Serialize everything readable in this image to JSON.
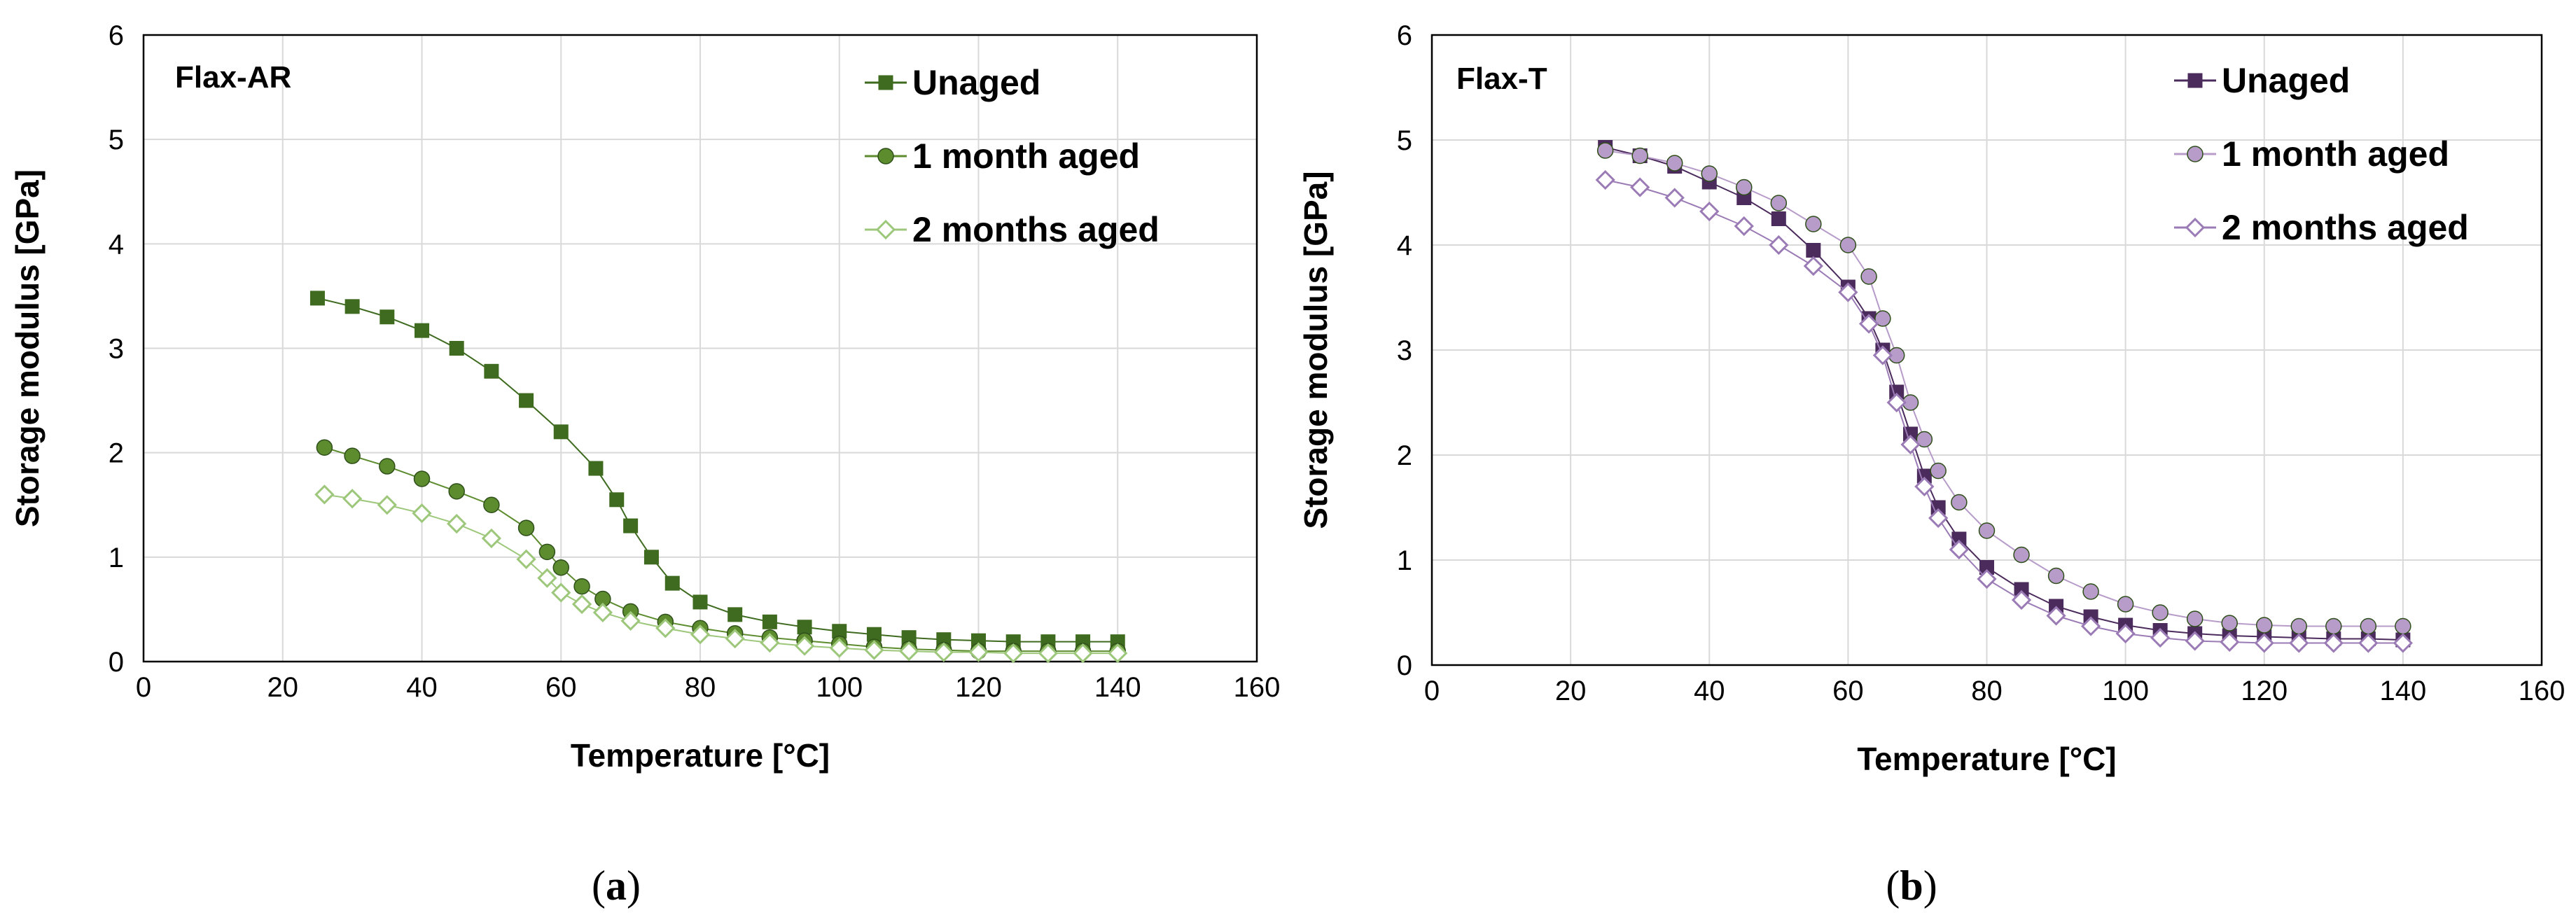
{
  "chart_data": [
    {
      "type": "scatter",
      "panel_label": "Flax-AR",
      "caption": "a",
      "xlabel": "Temperature [°C]",
      "ylabel": "Storage modulus [GPa]",
      "xlim": [
        0,
        160
      ],
      "ylim": [
        0,
        6
      ],
      "xticks": [
        0,
        20,
        40,
        60,
        80,
        100,
        120,
        140,
        160
      ],
      "yticks": [
        0,
        1,
        2,
        3,
        4,
        5,
        6
      ],
      "grid": true,
      "legend_position": "top-right",
      "series": [
        {
          "name": "Unaged",
          "marker": "square",
          "color": "#3e6b1f",
          "points": [
            [
              25,
              3.48
            ],
            [
              30,
              3.4
            ],
            [
              35,
              3.3
            ],
            [
              40,
              3.17
            ],
            [
              45,
              3.0
            ],
            [
              50,
              2.78
            ],
            [
              55,
              2.5
            ],
            [
              60,
              2.2
            ],
            [
              65,
              1.85
            ],
            [
              68,
              1.55
            ],
            [
              70,
              1.3
            ],
            [
              73,
              1.0
            ],
            [
              76,
              0.75
            ],
            [
              80,
              0.57
            ],
            [
              85,
              0.45
            ],
            [
              90,
              0.38
            ],
            [
              95,
              0.33
            ],
            [
              100,
              0.29
            ],
            [
              105,
              0.26
            ],
            [
              110,
              0.23
            ],
            [
              115,
              0.21
            ],
            [
              120,
              0.2
            ],
            [
              125,
              0.19
            ],
            [
              130,
              0.19
            ],
            [
              135,
              0.19
            ],
            [
              140,
              0.19
            ]
          ]
        },
        {
          "name": "1 month aged",
          "marker": "circle",
          "color": "#5c8c2e",
          "points": [
            [
              26,
              2.05
            ],
            [
              30,
              1.97
            ],
            [
              35,
              1.87
            ],
            [
              40,
              1.75
            ],
            [
              45,
              1.63
            ],
            [
              50,
              1.5
            ],
            [
              55,
              1.28
            ],
            [
              58,
              1.05
            ],
            [
              60,
              0.9
            ],
            [
              63,
              0.72
            ],
            [
              66,
              0.6
            ],
            [
              70,
              0.48
            ],
            [
              75,
              0.38
            ],
            [
              80,
              0.32
            ],
            [
              85,
              0.27
            ],
            [
              90,
              0.23
            ],
            [
              95,
              0.2
            ],
            [
              100,
              0.17
            ],
            [
              105,
              0.14
            ],
            [
              110,
              0.12
            ],
            [
              115,
              0.11
            ],
            [
              120,
              0.1
            ],
            [
              125,
              0.1
            ],
            [
              130,
              0.1
            ],
            [
              135,
              0.1
            ],
            [
              140,
              0.1
            ]
          ]
        },
        {
          "name": "2 months aged",
          "marker": "diamond",
          "color": "#9dc77a",
          "points": [
            [
              26,
              1.6
            ],
            [
              30,
              1.56
            ],
            [
              35,
              1.5
            ],
            [
              40,
              1.42
            ],
            [
              45,
              1.32
            ],
            [
              50,
              1.18
            ],
            [
              55,
              0.98
            ],
            [
              58,
              0.8
            ],
            [
              60,
              0.66
            ],
            [
              63,
              0.55
            ],
            [
              66,
              0.47
            ],
            [
              70,
              0.39
            ],
            [
              75,
              0.32
            ],
            [
              80,
              0.26
            ],
            [
              85,
              0.22
            ],
            [
              90,
              0.18
            ],
            [
              95,
              0.15
            ],
            [
              100,
              0.13
            ],
            [
              105,
              0.11
            ],
            [
              110,
              0.1
            ],
            [
              115,
              0.09
            ],
            [
              120,
              0.09
            ],
            [
              125,
              0.08
            ],
            [
              130,
              0.08
            ],
            [
              135,
              0.08
            ],
            [
              140,
              0.08
            ]
          ]
        }
      ]
    },
    {
      "type": "scatter",
      "panel_label": "Flax-T",
      "caption": "b",
      "xlabel": "Temperature [°C]",
      "ylabel": "Storage modulus [GPa]",
      "xlim": [
        0,
        160
      ],
      "ylim": [
        0,
        6
      ],
      "xticks": [
        0,
        20,
        40,
        60,
        80,
        100,
        120,
        140,
        160
      ],
      "yticks": [
        0,
        1,
        2,
        3,
        4,
        5,
        6
      ],
      "grid": true,
      "legend_position": "top-right",
      "series": [
        {
          "name": "Unaged",
          "marker": "square",
          "color": "#4b2a5c",
          "points": [
            [
              25,
              4.93
            ],
            [
              30,
              4.85
            ],
            [
              35,
              4.75
            ],
            [
              40,
              4.6
            ],
            [
              45,
              4.45
            ],
            [
              50,
              4.25
            ],
            [
              55,
              3.95
            ],
            [
              60,
              3.6
            ],
            [
              63,
              3.3
            ],
            [
              65,
              3.0
            ],
            [
              67,
              2.6
            ],
            [
              69,
              2.2
            ],
            [
              71,
              1.8
            ],
            [
              73,
              1.5
            ],
            [
              76,
              1.2
            ],
            [
              80,
              0.93
            ],
            [
              85,
              0.72
            ],
            [
              90,
              0.56
            ],
            [
              95,
              0.46
            ],
            [
              100,
              0.38
            ],
            [
              105,
              0.33
            ],
            [
              110,
              0.3
            ],
            [
              115,
              0.28
            ],
            [
              120,
              0.27
            ],
            [
              125,
              0.26
            ],
            [
              130,
              0.25
            ],
            [
              135,
              0.25
            ],
            [
              140,
              0.24
            ]
          ]
        },
        {
          "name": "1 month aged",
          "marker": "circle",
          "color": "#b79cc9",
          "points": [
            [
              25,
              4.9
            ],
            [
              30,
              4.85
            ],
            [
              35,
              4.78
            ],
            [
              40,
              4.68
            ],
            [
              45,
              4.55
            ],
            [
              50,
              4.4
            ],
            [
              55,
              4.2
            ],
            [
              60,
              4.0
            ],
            [
              63,
              3.7
            ],
            [
              65,
              3.3
            ],
            [
              67,
              2.95
            ],
            [
              69,
              2.5
            ],
            [
              71,
              2.15
            ],
            [
              73,
              1.85
            ],
            [
              76,
              1.55
            ],
            [
              80,
              1.28
            ],
            [
              85,
              1.05
            ],
            [
              90,
              0.85
            ],
            [
              95,
              0.7
            ],
            [
              100,
              0.58
            ],
            [
              105,
              0.5
            ],
            [
              110,
              0.44
            ],
            [
              115,
              0.4
            ],
            [
              120,
              0.38
            ],
            [
              125,
              0.37
            ],
            [
              130,
              0.37
            ],
            [
              135,
              0.37
            ],
            [
              140,
              0.37
            ]
          ]
        },
        {
          "name": "2 months aged",
          "marker": "diamond",
          "color": "#9b7bb5",
          "points": [
            [
              25,
              4.62
            ],
            [
              30,
              4.55
            ],
            [
              35,
              4.45
            ],
            [
              40,
              4.32
            ],
            [
              45,
              4.18
            ],
            [
              50,
              4.0
            ],
            [
              55,
              3.8
            ],
            [
              60,
              3.55
            ],
            [
              63,
              3.25
            ],
            [
              65,
              2.95
            ],
            [
              67,
              2.5
            ],
            [
              69,
              2.1
            ],
            [
              71,
              1.7
            ],
            [
              73,
              1.4
            ],
            [
              76,
              1.1
            ],
            [
              80,
              0.82
            ],
            [
              85,
              0.62
            ],
            [
              90,
              0.47
            ],
            [
              95,
              0.37
            ],
            [
              100,
              0.3
            ],
            [
              105,
              0.26
            ],
            [
              110,
              0.23
            ],
            [
              115,
              0.22
            ],
            [
              120,
              0.21
            ],
            [
              125,
              0.21
            ],
            [
              130,
              0.21
            ],
            [
              135,
              0.21
            ],
            [
              140,
              0.21
            ]
          ]
        }
      ]
    }
  ]
}
